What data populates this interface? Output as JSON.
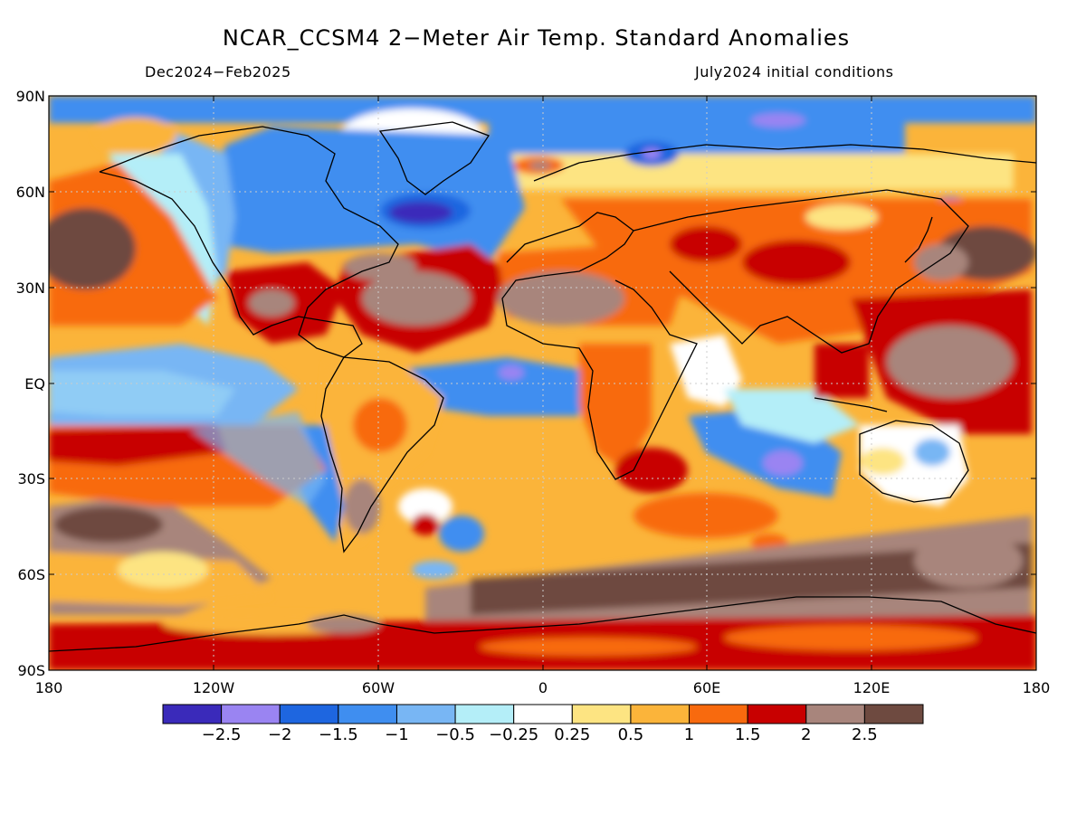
{
  "title": "NCAR_CCSM4 2−Meter Air Temp. Standard Anomalies",
  "subtitle_left": "Dec2024−Feb2025",
  "subtitle_right": "July2024 initial conditions",
  "lat_labels": [
    "90N",
    "60N",
    "30N",
    "EQ",
    "30S",
    "60S",
    "90S"
  ],
  "lon_labels": [
    "180",
    "120W",
    "60W",
    "0",
    "60E",
    "120E",
    "180"
  ],
  "colorbar": {
    "colors": [
      "#3a2aba",
      "#9a84f2",
      "#1e66e0",
      "#3f8ef0",
      "#78b6f4",
      "#b4eef8",
      "#ffffff",
      "#fde482",
      "#fbb43a",
      "#f86a0e",
      "#c80000",
      "#a8857c",
      "#6e4a40"
    ],
    "labels": [
      "−2.5",
      "−2",
      "−1.5",
      "−1",
      "−0.5",
      "−0.25",
      "0.25",
      "0.5",
      "1",
      "1.5",
      "2",
      "2.5"
    ]
  },
  "chart_data": {
    "type": "heatmap",
    "title": "NCAR_CCSM4 2−Meter Air Temp. Standard Anomalies",
    "subtitle": [
      "Dec2024−Feb2025",
      "July2024 initial conditions"
    ],
    "x_axis": {
      "range": [
        -180,
        180
      ],
      "ticks": [
        "180",
        "120W",
        "60W",
        "0",
        "60E",
        "120E",
        "180"
      ]
    },
    "y_axis": {
      "range": [
        -90,
        90
      ],
      "ticks": [
        "90N",
        "60N",
        "30N",
        "EQ",
        "30S",
        "60S",
        "90S"
      ]
    },
    "grid": true,
    "colorbar_levels": [
      -2.5,
      -2,
      -1.5,
      -1,
      -0.5,
      -0.25,
      0.25,
      0.5,
      1,
      1.5,
      2,
      2.5
    ],
    "regions": [
      {
        "lon": [
          -180,
          180
        ],
        "lat": [
          83,
          90
        ],
        "value": -1.2
      },
      {
        "lon": [
          -180,
          180
        ],
        "lat": [
          -90,
          -70
        ],
        "value": 1.8
      },
      {
        "lon": [
          -180,
          180
        ],
        "lat": [
          -68,
          -55
        ],
        "value": 2.6
      },
      {
        "lon": [
          -130,
          -95
        ],
        "lat": [
          -45,
          -15
        ],
        "value": -0.6
      },
      {
        "lon": [
          -40,
          130
        ],
        "lat": [
          -55,
          -60
        ],
        "value": 2.7
      },
      {
        "lon": [
          -180,
          -150
        ],
        "lat": [
          -48,
          -32
        ],
        "value": 2.6
      },
      {
        "lon": [
          -100,
          -40
        ],
        "lat": [
          45,
          75
        ],
        "value": -1.5
      },
      {
        "lon": [
          -78,
          -60
        ],
        "lat": [
          55,
          62
        ],
        "value": -2.5
      },
      {
        "lon": [
          -75,
          -58
        ],
        "lat": [
          15,
          25
        ],
        "value": 1.3
      },
      {
        "lon": [
          -45,
          -5
        ],
        "lat": [
          -8,
          3
        ],
        "value": -1.2
      },
      {
        "lon": [
          -20,
          -15
        ],
        "lat": [
          3,
          6
        ],
        "value": -2.2
      },
      {
        "lon": [
          55,
          100
        ],
        "lat": [
          -30,
          -15
        ],
        "value": -1.2
      },
      {
        "lon": [
          90,
          95
        ],
        "lat": [
          -28,
          -25
        ],
        "value": -2.0
      },
      {
        "lon": [
          -180,
          -110
        ],
        "lat": [
          -10,
          10
        ],
        "value": -1.2
      },
      {
        "lon": [
          -180,
          -160
        ],
        "lat": [
          25,
          45
        ],
        "value": 2.7
      },
      {
        "lon": [
          140,
          180
        ],
        "lat": [
          25,
          40
        ],
        "value": 2.7
      },
      {
        "lon": [
          140,
          150
        ],
        "lat": [
          55,
          62
        ],
        "value": -2.0
      },
      {
        "lon": [
          130,
          160
        ],
        "lat": [
          -35,
          -15
        ],
        "value": -0.3
      },
      {
        "lon": [
          -50,
          -15
        ],
        "lat": [
          20,
          35
        ],
        "value": 2.6
      },
      {
        "lon": [
          -20,
          35
        ],
        "lat": [
          15,
          30
        ],
        "value": 2.6
      },
      {
        "lon": [
          30,
          130
        ],
        "lat": [
          0,
          50
        ],
        "value": 1.5
      },
      {
        "lon": [
          5,
          60
        ],
        "lat": [
          -25,
          15
        ],
        "value": 1.0
      }
    ]
  }
}
